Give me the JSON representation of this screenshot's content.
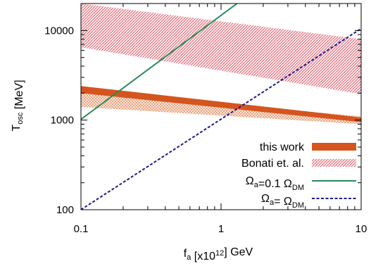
{
  "chart_data": {
    "type": "line",
    "xlabel": {
      "base": "f",
      "sub": "a",
      "pre": " [x10",
      "sup": "12",
      "post": "] GeV"
    },
    "ylabel": {
      "base": "T",
      "sub": "osc",
      "post": " [MeV]"
    },
    "x_scale": "log",
    "y_scale": "log",
    "xlim": [
      0.1,
      10
    ],
    "ylim": [
      100,
      20000
    ],
    "x_ticks": [
      {
        "value": 0.1,
        "label": "0.1"
      },
      {
        "value": 1,
        "label": "1"
      },
      {
        "value": 10,
        "label": "10"
      }
    ],
    "y_ticks": [
      {
        "value": 100,
        "label": "100"
      },
      {
        "value": 1000,
        "label": "1000"
      },
      {
        "value": 10000,
        "label": "10000"
      }
    ],
    "legend_position": "bottom-right",
    "colors": {
      "this_work": "#d4551e",
      "this_work_hatch": "#e8a07a",
      "bonati": "#e36a78",
      "omega01": "#2a8a5a",
      "omega1": "#1a1a8c"
    },
    "series": [
      {
        "name": "this work",
        "style": "band",
        "x": [
          0.1,
          10
        ],
        "upper": [
          2400,
          1070
        ],
        "lower": [
          2000,
          950
        ],
        "hatch_x": [
          0.1,
          10
        ],
        "hatch_upper": [
          2100,
          1100
        ],
        "hatch_lower": [
          1400,
          900
        ]
      },
      {
        "name": "Bonati et. al.",
        "style": "band",
        "x": [
          0.1,
          10
        ],
        "upper": [
          20000,
          8000
        ],
        "lower": [
          6500,
          1950
        ]
      },
      {
        "name": "Ω_a=0.1 Ω_DM",
        "style": "solid",
        "x": [
          0.1,
          1.3
        ],
        "y": [
          1020,
          20000
        ]
      },
      {
        "name": "Ω_a= Ω_DM",
        "style": "dashed",
        "x": [
          0.1,
          10
        ],
        "y": [
          100,
          10500
        ]
      }
    ],
    "legend": [
      {
        "key": "this_work",
        "parts": [
          {
            "t": "this work"
          }
        ]
      },
      {
        "key": "bonati",
        "parts": [
          {
            "t": "Bonati et. al."
          }
        ]
      },
      {
        "key": "omega01",
        "parts": [
          {
            "t": "Ω"
          },
          {
            "t": "a",
            "sub": true
          },
          {
            "t": "=0.1 Ω"
          },
          {
            "t": "DM",
            "sub": true
          }
        ]
      },
      {
        "key": "omega1",
        "parts": [
          {
            "t": "Ω"
          },
          {
            "t": "a",
            "sub": true
          },
          {
            "t": "= Ω"
          },
          {
            "t": "DM",
            "sub": true
          }
        ]
      }
    ]
  }
}
